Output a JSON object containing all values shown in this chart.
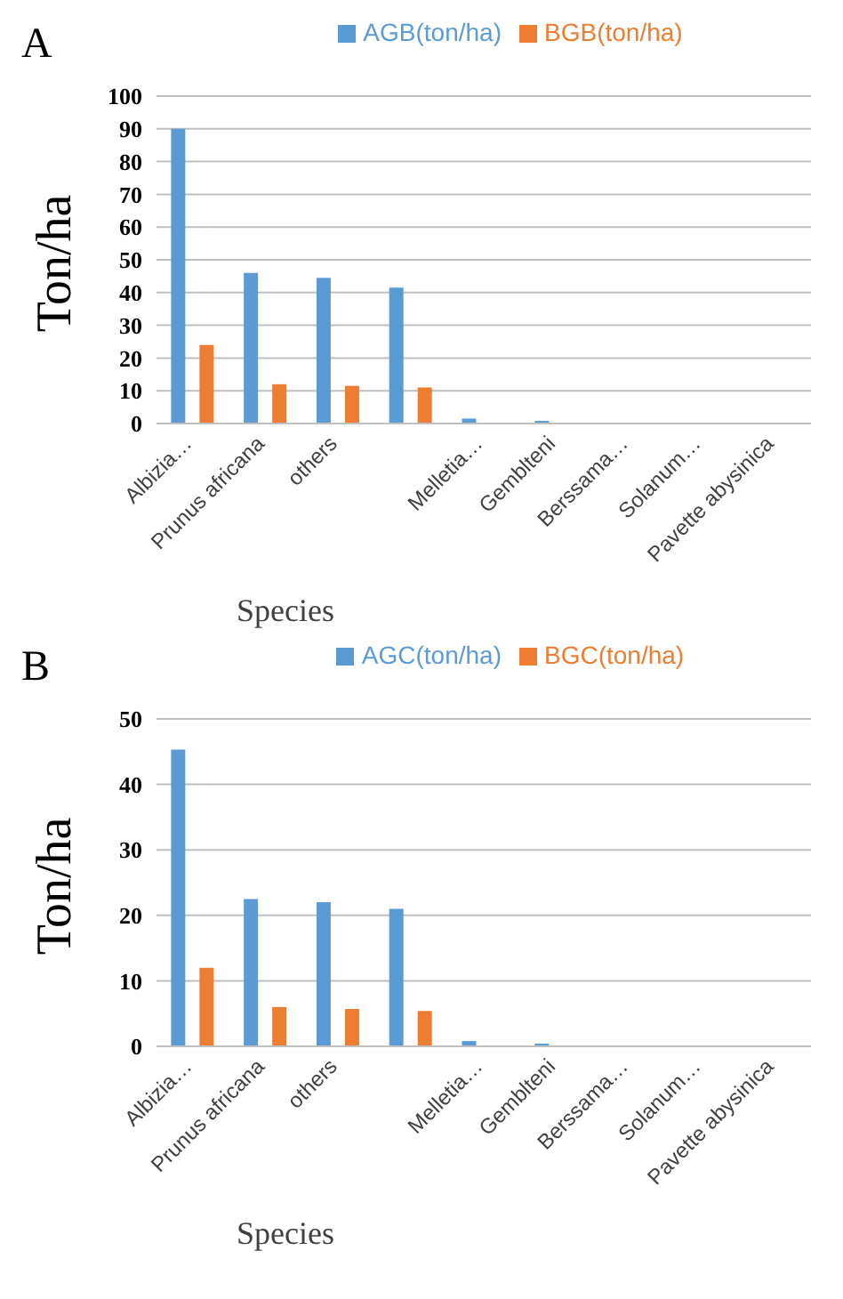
{
  "chart_data": [
    {
      "type": "bar",
      "annotations": [
        "A"
      ],
      "xlabel": "Species",
      "ylabel": "Ton/ha",
      "categories": [
        "Albizia…",
        "Prunus africana",
        "others",
        null,
        "Melletia…",
        "Gemblteni",
        "Berssama…",
        "Solanum…",
        "Pavette abysinica"
      ],
      "series": [
        {
          "name": "AGB(ton/ha)",
          "color": "#5b9bd5",
          "values": [
            90,
            46,
            44.5,
            41.5,
            1.5,
            0.8,
            0,
            0,
            0
          ]
        },
        {
          "name": "BGB(ton/ha)",
          "color": "#ed7d31",
          "values": [
            24,
            12,
            11.5,
            11,
            0,
            0,
            0,
            0,
            0
          ]
        }
      ],
      "ylim": [
        0,
        100
      ],
      "yticks": [
        0,
        10,
        20,
        30,
        40,
        50,
        60,
        70,
        80,
        90,
        100
      ],
      "grid": "y",
      "legend": "top"
    },
    {
      "type": "bar",
      "annotations": [
        "B"
      ],
      "xlabel": "Species",
      "ylabel": "Ton/ha",
      "categories": [
        "Albizia…",
        "Prunus africana",
        "others",
        null,
        "Melletia…",
        "Gemblteni",
        "Berssama…",
        "Solanum…",
        "Pavette abysinica"
      ],
      "series": [
        {
          "name": "AGC(ton/ha)",
          "color": "#5b9bd5",
          "values": [
            45.3,
            22.5,
            22,
            21,
            0.8,
            0.4,
            0,
            0,
            0
          ]
        },
        {
          "name": "BGC(ton/ha)",
          "color": "#ed7d31",
          "values": [
            12,
            6,
            5.7,
            5.4,
            0,
            0,
            0,
            0,
            0
          ]
        }
      ],
      "ylim": [
        0,
        50
      ],
      "yticks": [
        0,
        10,
        20,
        30,
        40,
        50
      ],
      "grid": "y",
      "legend": "top"
    }
  ]
}
